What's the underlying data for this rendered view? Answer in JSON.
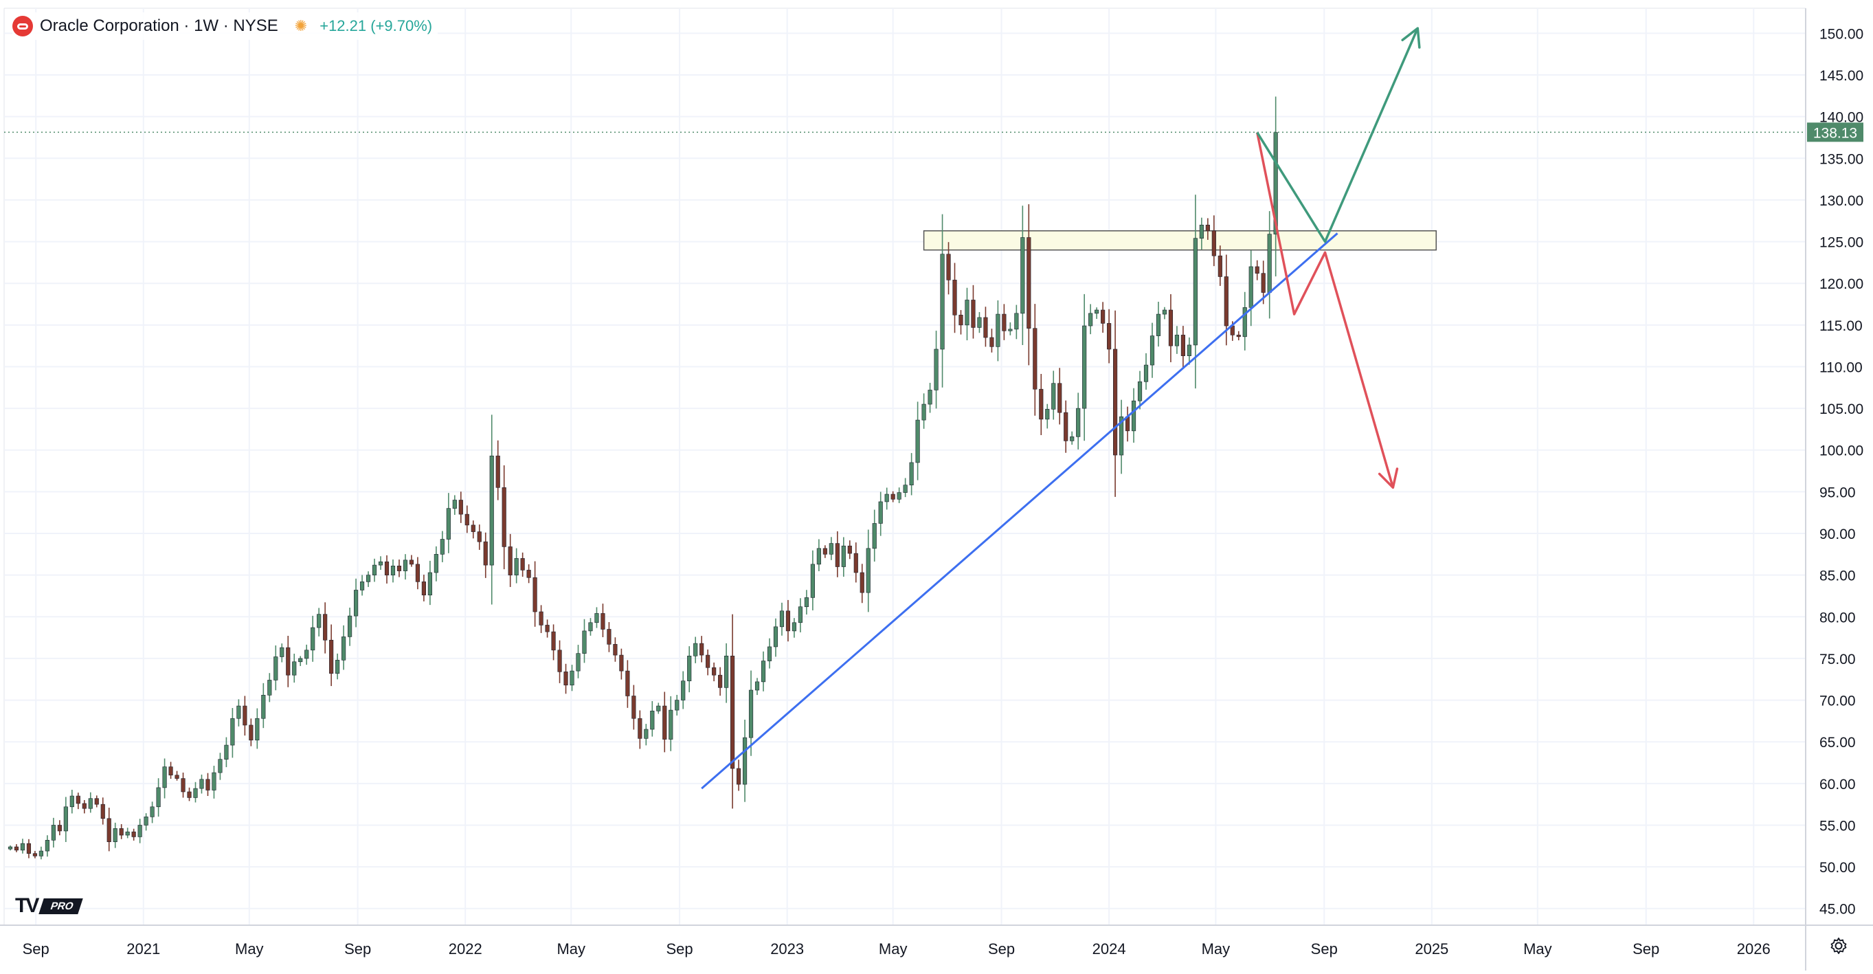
{
  "header": {
    "symbol_title": "Oracle Corporation · 1W · NYSE",
    "change": "+12.21 (+9.70%)"
  },
  "watermark": {
    "brand": "TV",
    "tier": "PRO"
  },
  "icons": {
    "logo": "oracle-logo-icon",
    "market": "sun-icon",
    "settings": "gear-icon"
  },
  "colors": {
    "up": "#4f8a6a",
    "down": "#7a3a2e",
    "price_tag": "#4f8a6a",
    "trendline": "#3d6ff0",
    "bull_path": "#3f9a7c",
    "bear_path": "#e0515a",
    "zone_fill": "#fbfbe4",
    "zone_border": "#555555"
  },
  "chart_data": {
    "type": "candlestick",
    "title": "Oracle Corporation · 1W · NYSE",
    "ylim": [
      43,
      153
    ],
    "y_ticks": [
      "45.00",
      "50.00",
      "55.00",
      "60.00",
      "65.00",
      "70.00",
      "75.00",
      "80.00",
      "85.00",
      "90.00",
      "95.00",
      "100.00",
      "105.00",
      "110.00",
      "115.00",
      "120.00",
      "125.00",
      "130.00",
      "135.00",
      "140.00",
      "145.00",
      "150.00"
    ],
    "x_ticks": [
      "Sep",
      "2021",
      "May",
      "Sep",
      "2022",
      "May",
      "Sep",
      "2023",
      "May",
      "Sep",
      "2024",
      "May",
      "Sep",
      "2025",
      "May",
      "Sep",
      "2026"
    ],
    "x_tick_dates": [
      "2020-09-01",
      "2021-01-01",
      "2021-05-01",
      "2021-09-01",
      "2022-01-01",
      "2022-05-01",
      "2022-09-01",
      "2023-01-01",
      "2023-05-01",
      "2023-09-01",
      "2024-01-01",
      "2024-05-01",
      "2024-09-01",
      "2025-01-01",
      "2025-05-01",
      "2025-09-01",
      "2026-01-01"
    ],
    "x_range": [
      "2020-07-27",
      "2026-03-01"
    ],
    "last_price": "138.13",
    "grid": true,
    "series": [
      {
        "name": "Oracle Corporation",
        "weekly_close_2020_08_03_to_2024_06_17": [
          52.4,
          52.0,
          52.8,
          51.6,
          51.3,
          51.9,
          53.2,
          55.0,
          54.3,
          57.2,
          58.5,
          57.6,
          57.0,
          58.2,
          57.5,
          55.8,
          53.0,
          54.6,
          53.8,
          54.2,
          53.6,
          55.0,
          56.0,
          57.2,
          59.5,
          62.0,
          61.0,
          60.6,
          59.0,
          58.3,
          59.4,
          60.5,
          59.2,
          61.3,
          62.9,
          64.6,
          67.8,
          69.3,
          67.0,
          65.2,
          67.8,
          70.6,
          72.4,
          75.2,
          76.3,
          73.0,
          74.6,
          75.0,
          76.0,
          78.7,
          80.3,
          77.2,
          73.2,
          74.8,
          77.6,
          80.1,
          83.2,
          84.2,
          85.0,
          86.2,
          86.6,
          85.0,
          86.1,
          85.5,
          86.8,
          86.3,
          84.2,
          82.6,
          85.3,
          87.5,
          89.3,
          93.0,
          94.0,
          92.3,
          91.0,
          90.2,
          89.0,
          86.2,
          99.3,
          95.5,
          88.4,
          85.0,
          87.0,
          85.6,
          84.7,
          80.6,
          79.0,
          78.2,
          76.0,
          73.4,
          71.8,
          73.5,
          75.6,
          78.3,
          79.3,
          80.4,
          78.5,
          76.7,
          75.4,
          73.5,
          70.5,
          67.8,
          65.4,
          66.5,
          68.7,
          69.3,
          65.3,
          68.8,
          70.0,
          72.3,
          75.3,
          76.8,
          75.4,
          73.9,
          73.0,
          71.5,
          75.3,
          61.8,
          59.9,
          65.5,
          71.2,
          72.2,
          74.7,
          76.4,
          78.8,
          80.7,
          78.3,
          79.3,
          81.2,
          82.3,
          86.3,
          88.2,
          87.5,
          88.8,
          86.0,
          88.5,
          87.6,
          85.3,
          82.9,
          88.2,
          91.2,
          93.8,
          94.7,
          94.1,
          94.9,
          95.8,
          98.5,
          103.6,
          105.5,
          107.2,
          112.1,
          123.5,
          120.4,
          116.2,
          115.0,
          118.0,
          114.7,
          115.9,
          113.5,
          112.4,
          116.3,
          114.3,
          114.5,
          116.4,
          125.5,
          114.6,
          107.3,
          103.7,
          104.9,
          108.0,
          104.5,
          101.1,
          101.6,
          105.0,
          114.9,
          116.4,
          116.8,
          115.2,
          112.1,
          99.4,
          104.0,
          102.3,
          105.9,
          108.2,
          110.2,
          113.7,
          116.3,
          116.8,
          112.5,
          113.8,
          111.3,
          112.6,
          125.4,
          127.0,
          126.3,
          123.3,
          120.8,
          114.9,
          113.8,
          113.6,
          117.1,
          122.0,
          121.2,
          118.9,
          125.9,
          138.1
        ]
      }
    ],
    "annotations": {
      "support_zone": {
        "from": "2023-06-05",
        "to": "2025-01-06",
        "low": 124.0,
        "high": 126.3
      },
      "trendline": {
        "from_date": "2022-09-26",
        "from_price": 59.4,
        "to_date": "2024-09-16",
        "to_price": 126.0
      },
      "bullish_path": [
        [
          "2024-06-17",
          138.1
        ],
        [
          "2024-09-02",
          125.0
        ],
        [
          "2024-12-16",
          150.6
        ]
      ],
      "bearish_path": [
        [
          "2024-06-17",
          138.1
        ],
        [
          "2024-07-29",
          116.3
        ],
        [
          "2024-09-02",
          123.7
        ],
        [
          "2024-11-18",
          95.5
        ]
      ]
    }
  }
}
